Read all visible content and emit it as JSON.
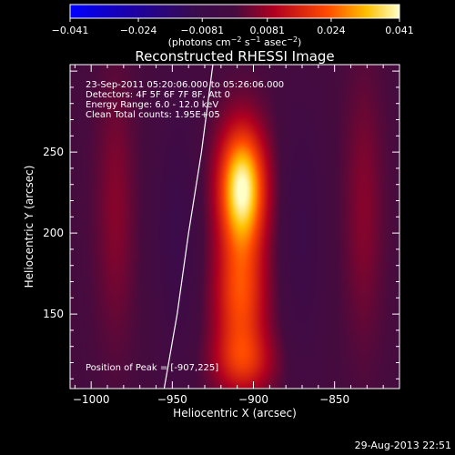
{
  "chart_data": {
    "type": "heatmap",
    "title": "Reconstructed RHESSI Image",
    "xlabel": "Heliocentric X (arcsec)",
    "ylabel": "Heliocentric Y (arcsec)",
    "xlim": [
      -1013,
      -810
    ],
    "ylim": [
      104,
      304
    ],
    "x_ticks": [
      -1000,
      -950,
      -900,
      -850
    ],
    "x_tick_labels": [
      "−1000",
      "−950",
      "−900",
      "−850"
    ],
    "y_ticks": [
      150,
      200,
      250
    ],
    "y_tick_labels": [
      "150",
      "200",
      "250"
    ],
    "colorbar": {
      "range": [
        -0.041,
        0.041
      ],
      "ticks": [
        -0.041,
        -0.024,
        -0.0081,
        0.0081,
        0.024,
        0.041
      ],
      "tick_labels": [
        "−0.041",
        "−0.024",
        "−0.0081",
        "0.0081",
        "0.024",
        "0.041"
      ],
      "units_main": "(photons cm",
      "units_sup1": "−2",
      "units_mid": " s",
      "units_sup2": "−1",
      "units_mid2": " asec",
      "units_sup3": "−2",
      "units_end": ")"
    },
    "peak": {
      "x": -907,
      "y": 225,
      "value": 0.041
    },
    "sources": [
      {
        "x": -907,
        "y": 228,
        "sigma_x": 10,
        "sigma_y": 26,
        "amp": 0.041
      },
      {
        "x": -908,
        "y": 160,
        "sigma_x": 11,
        "sigma_y": 28,
        "amp": 0.022
      },
      {
        "x": -906,
        "y": 120,
        "sigma_x": 13,
        "sigma_y": 14,
        "amp": 0.014
      },
      {
        "x": -947,
        "y": 200,
        "sigma_x": 9,
        "sigma_y": 55,
        "amp": -0.008
      },
      {
        "x": -870,
        "y": 200,
        "sigma_x": 9,
        "sigma_y": 55,
        "amp": -0.007
      },
      {
        "x": -985,
        "y": 215,
        "sigma_x": 8,
        "sigma_y": 55,
        "amp": 0.006
      },
      {
        "x": -832,
        "y": 215,
        "sigma_x": 8,
        "sigma_y": 55,
        "amp": 0.006
      }
    ],
    "limb": [
      [
        -955,
        104
      ],
      [
        -947,
        150
      ],
      [
        -940,
        200
      ],
      [
        -932,
        250
      ],
      [
        -925,
        304
      ]
    ],
    "info_lines": [
      "23-Sep-2011 05:20:06.000 to 05:26:06.000",
      "Detectors: 4F 5F 6F 7F 8F, Att 0",
      "Energy Range: 6.0 - 12.0 keV",
      "Clean    Total counts: 1.95E+05"
    ],
    "peak_label": "Position of Peak = [-907,225]",
    "timestamp": "29-Aug-2013 22:51",
    "grid": false
  }
}
